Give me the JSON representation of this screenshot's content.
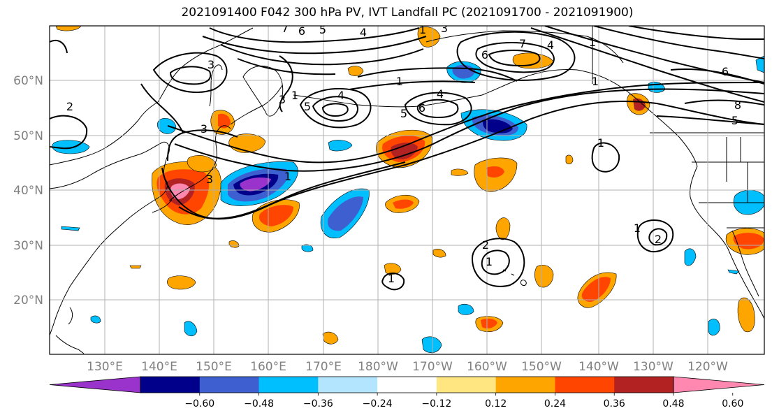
{
  "title": "2021091400 F042 300 hPa PV, IVT Landfall PC (2021091700 - 2021091900)",
  "map": {
    "lat_labels": [
      "60°N",
      "50°N",
      "40°N",
      "30°N",
      "20°N"
    ],
    "lon_labels": [
      "130°E",
      "140°E",
      "150°E",
      "160°E",
      "170°E",
      "180°W",
      "170°W",
      "160°W",
      "150°W",
      "140°W",
      "130°W",
      "120°W"
    ],
    "grid": true,
    "fill_field": "IVT Landfall PC",
    "contour_field": "300 hPa PV",
    "contour_labels": [
      "7",
      "6",
      "5",
      "4",
      "3",
      "3",
      "3",
      "1",
      "4",
      "4",
      "5",
      "6",
      "5",
      "1",
      "2",
      "3",
      "1",
      "6",
      "7",
      "4",
      "1",
      "1",
      "1",
      "2",
      "1",
      "1",
      "2",
      "1",
      "6",
      "8",
      "5",
      "1",
      "3"
    ]
  },
  "colorbar": {
    "ticks": [
      "−0.60",
      "−0.48",
      "−0.36",
      "−0.24",
      "−0.12",
      "0.12",
      "0.24",
      "0.36",
      "0.48",
      "0.60"
    ],
    "colors": [
      "#9933cc",
      "#00008b",
      "#3d5fcf",
      "#00bfff",
      "#b3e5ff",
      "#ffffff",
      "#ffe680",
      "#ffa500",
      "#ff4500",
      "#b22222",
      "#ff88b0"
    ],
    "extend": "both"
  }
}
